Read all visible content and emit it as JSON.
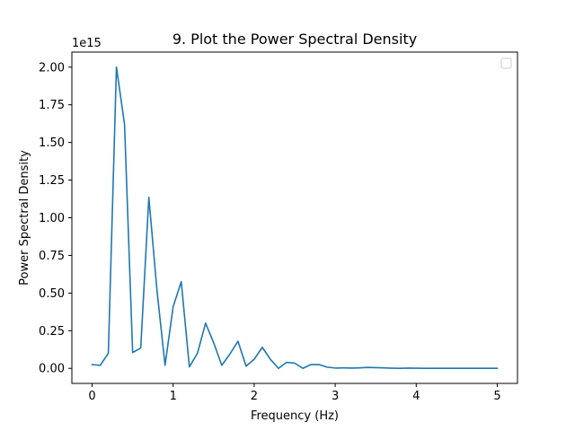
{
  "chart_data": {
    "type": "line",
    "title": "9. Plot the Power Spectral Density",
    "xlabel": "Frequency (Hz)",
    "ylabel": "Power Spectral Density",
    "offset_text": "1e15",
    "xlim": [
      -0.25,
      5.25
    ],
    "ylim": [
      -0.1,
      2.1
    ],
    "y_multiplier": 1000000000000000.0,
    "x_ticks": [
      0,
      1,
      2,
      3,
      4,
      5
    ],
    "x_tick_labels": [
      "0",
      "1",
      "2",
      "3",
      "4",
      "5"
    ],
    "y_ticks": [
      0.0,
      0.25,
      0.5,
      0.75,
      1.0,
      1.25,
      1.5,
      1.75,
      2.0
    ],
    "y_tick_labels": [
      "0.00",
      "0.25",
      "0.50",
      "0.75",
      "1.00",
      "1.25",
      "1.50",
      "1.75",
      "2.00"
    ],
    "legend": {
      "placement": "top-right",
      "entries": []
    },
    "grid": false,
    "series": [
      {
        "color": "#1f77b4",
        "x": [
          0,
          0.1,
          0.2,
          0.3,
          0.4,
          0.5,
          0.6,
          0.7,
          0.8,
          0.9,
          1.0,
          1.1,
          1.2,
          1.3,
          1.4,
          1.5,
          1.6,
          1.7,
          1.8,
          1.9,
          2.0,
          2.1,
          2.2,
          2.3,
          2.4,
          2.5,
          2.6,
          2.7,
          2.8,
          2.9,
          3.0,
          3.1,
          3.2,
          3.3,
          3.4,
          3.5,
          3.6,
          3.7,
          3.8,
          3.9,
          4.0,
          4.1,
          4.2,
          4.3,
          4.4,
          4.5,
          4.6,
          4.7,
          4.8,
          4.9,
          5.0
        ],
        "y": [
          0.025,
          0.02,
          0.1,
          2.0,
          1.62,
          0.105,
          0.135,
          1.135,
          0.52,
          0.02,
          0.41,
          0.575,
          0.01,
          0.1,
          0.3,
          0.17,
          0.02,
          0.095,
          0.18,
          0.015,
          0.06,
          0.14,
          0.06,
          0.0,
          0.04,
          0.035,
          0.0,
          0.025,
          0.025,
          0.008,
          0.002,
          0.003,
          0.002,
          0.003,
          0.006,
          0.005,
          0.003,
          0.001,
          0.0,
          0.002,
          0.001,
          0.0,
          0.0,
          0.0,
          0.0,
          0.0,
          0.0,
          0.0,
          0.0,
          0.0,
          0.0
        ]
      }
    ]
  }
}
